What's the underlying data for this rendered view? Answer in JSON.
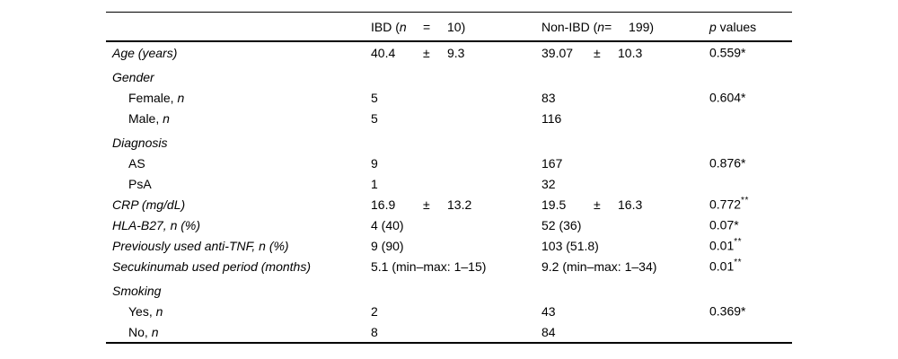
{
  "table": {
    "header": {
      "ibd": {
        "prefix": "IBD (",
        "n": "n",
        "eq": "=",
        "count": "10)"
      },
      "nonibd": {
        "prefix": "Non-IBD (",
        "n": "n",
        "eq": "=",
        "count": "199)"
      },
      "p": {
        "p": "p",
        "rest": " values"
      }
    },
    "rows": [
      {
        "label": "Age (years)",
        "ibd": {
          "v": "40.4",
          "pm": "±",
          "sd": "9.3"
        },
        "nonibd": {
          "v": "39.07",
          "pm": "±",
          "sd": "10.3"
        },
        "p": {
          "text": "0.559*",
          "sup": ""
        }
      },
      {
        "label": "Gender"
      },
      {
        "label": "Female, ",
        "label_n": "n",
        "ibd": {
          "v": "5"
        },
        "nonibd": {
          "v": "83"
        },
        "p": {
          "text": "0.604*",
          "sup": ""
        }
      },
      {
        "label": "Male, ",
        "label_n": "n",
        "ibd": {
          "v": "5"
        },
        "nonibd": {
          "v": "116"
        }
      },
      {
        "label": "Diagnosis"
      },
      {
        "label": "AS",
        "ibd": {
          "v": "9"
        },
        "nonibd": {
          "v": "167"
        },
        "p": {
          "text": "0.876*",
          "sup": ""
        }
      },
      {
        "label": "PsA",
        "ibd": {
          "v": "1"
        },
        "nonibd": {
          "v": "32"
        }
      },
      {
        "label": "CRP (mg/dL)",
        "ibd": {
          "v": "16.9",
          "pm": "±",
          "sd": "13.2"
        },
        "nonibd": {
          "v": "19.5",
          "pm": "±",
          "sd": "16.3"
        },
        "p": {
          "text": "0.772",
          "sup": "**"
        }
      },
      {
        "label": "HLA-B27, n (%)",
        "ibd": {
          "v": "4 (40)"
        },
        "nonibd": {
          "v": "52 (36)"
        },
        "p": {
          "text": "0.07*",
          "sup": ""
        }
      },
      {
        "label": "Previously used anti-TNF, n (%)",
        "ibd": {
          "v": "9 (90)"
        },
        "nonibd": {
          "v": "103 (51.8)"
        },
        "p": {
          "text": "0.01",
          "sup": "**"
        }
      },
      {
        "label": "Secukinumab used period (months)",
        "ibd": {
          "v": "5.1 (min–max: 1–15)"
        },
        "nonibd": {
          "v": "9.2 (min–max: 1–34)"
        },
        "p": {
          "text": "0.01",
          "sup": "**"
        }
      },
      {
        "label": "Smoking"
      },
      {
        "label": "Yes, ",
        "label_n": "n",
        "ibd": {
          "v": "2"
        },
        "nonibd": {
          "v": "43"
        },
        "p": {
          "text": "0.369*",
          "sup": ""
        }
      },
      {
        "label": "No, ",
        "label_n": "n",
        "ibd": {
          "v": "8"
        },
        "nonibd": {
          "v": "84"
        }
      }
    ]
  }
}
